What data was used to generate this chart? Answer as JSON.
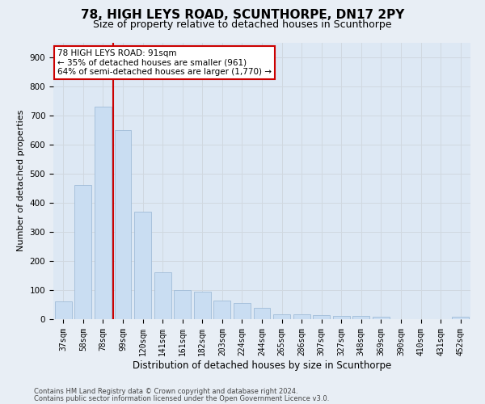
{
  "title": "78, HIGH LEYS ROAD, SCUNTHORPE, DN17 2PY",
  "subtitle": "Size of property relative to detached houses in Scunthorpe",
  "xlabel": "Distribution of detached houses by size in Scunthorpe",
  "ylabel": "Number of detached properties",
  "footer_line1": "Contains HM Land Registry data © Crown copyright and database right 2024.",
  "footer_line2": "Contains public sector information licensed under the Open Government Licence v3.0.",
  "bar_labels": [
    "37sqm",
    "58sqm",
    "78sqm",
    "99sqm",
    "120sqm",
    "141sqm",
    "161sqm",
    "182sqm",
    "203sqm",
    "224sqm",
    "244sqm",
    "265sqm",
    "286sqm",
    "307sqm",
    "327sqm",
    "348sqm",
    "369sqm",
    "390sqm",
    "410sqm",
    "431sqm",
    "452sqm"
  ],
  "bar_values": [
    60,
    460,
    730,
    650,
    370,
    160,
    100,
    95,
    65,
    55,
    40,
    18,
    18,
    14,
    12,
    10,
    8,
    0,
    0,
    0,
    8
  ],
  "bar_color": "#c9ddf2",
  "bar_edgecolor": "#a0bcd8",
  "vline_color": "#cc0000",
  "annotation_text": "78 HIGH LEYS ROAD: 91sqm\n← 35% of detached houses are smaller (961)\n64% of semi-detached houses are larger (1,770) →",
  "annotation_box_color": "#ffffff",
  "annotation_box_edgecolor": "#cc0000",
  "ylim": [
    0,
    950
  ],
  "yticks": [
    0,
    100,
    200,
    300,
    400,
    500,
    600,
    700,
    800,
    900
  ],
  "grid_color": "#d0d8e0",
  "bg_color": "#e8eef5",
  "plot_bg_color": "#dde8f4",
  "title_fontsize": 11,
  "subtitle_fontsize": 9,
  "ylabel_fontsize": 8,
  "xlabel_fontsize": 8.5,
  "tick_fontsize": 7,
  "footer_fontsize": 6,
  "annot_fontsize": 7.5
}
